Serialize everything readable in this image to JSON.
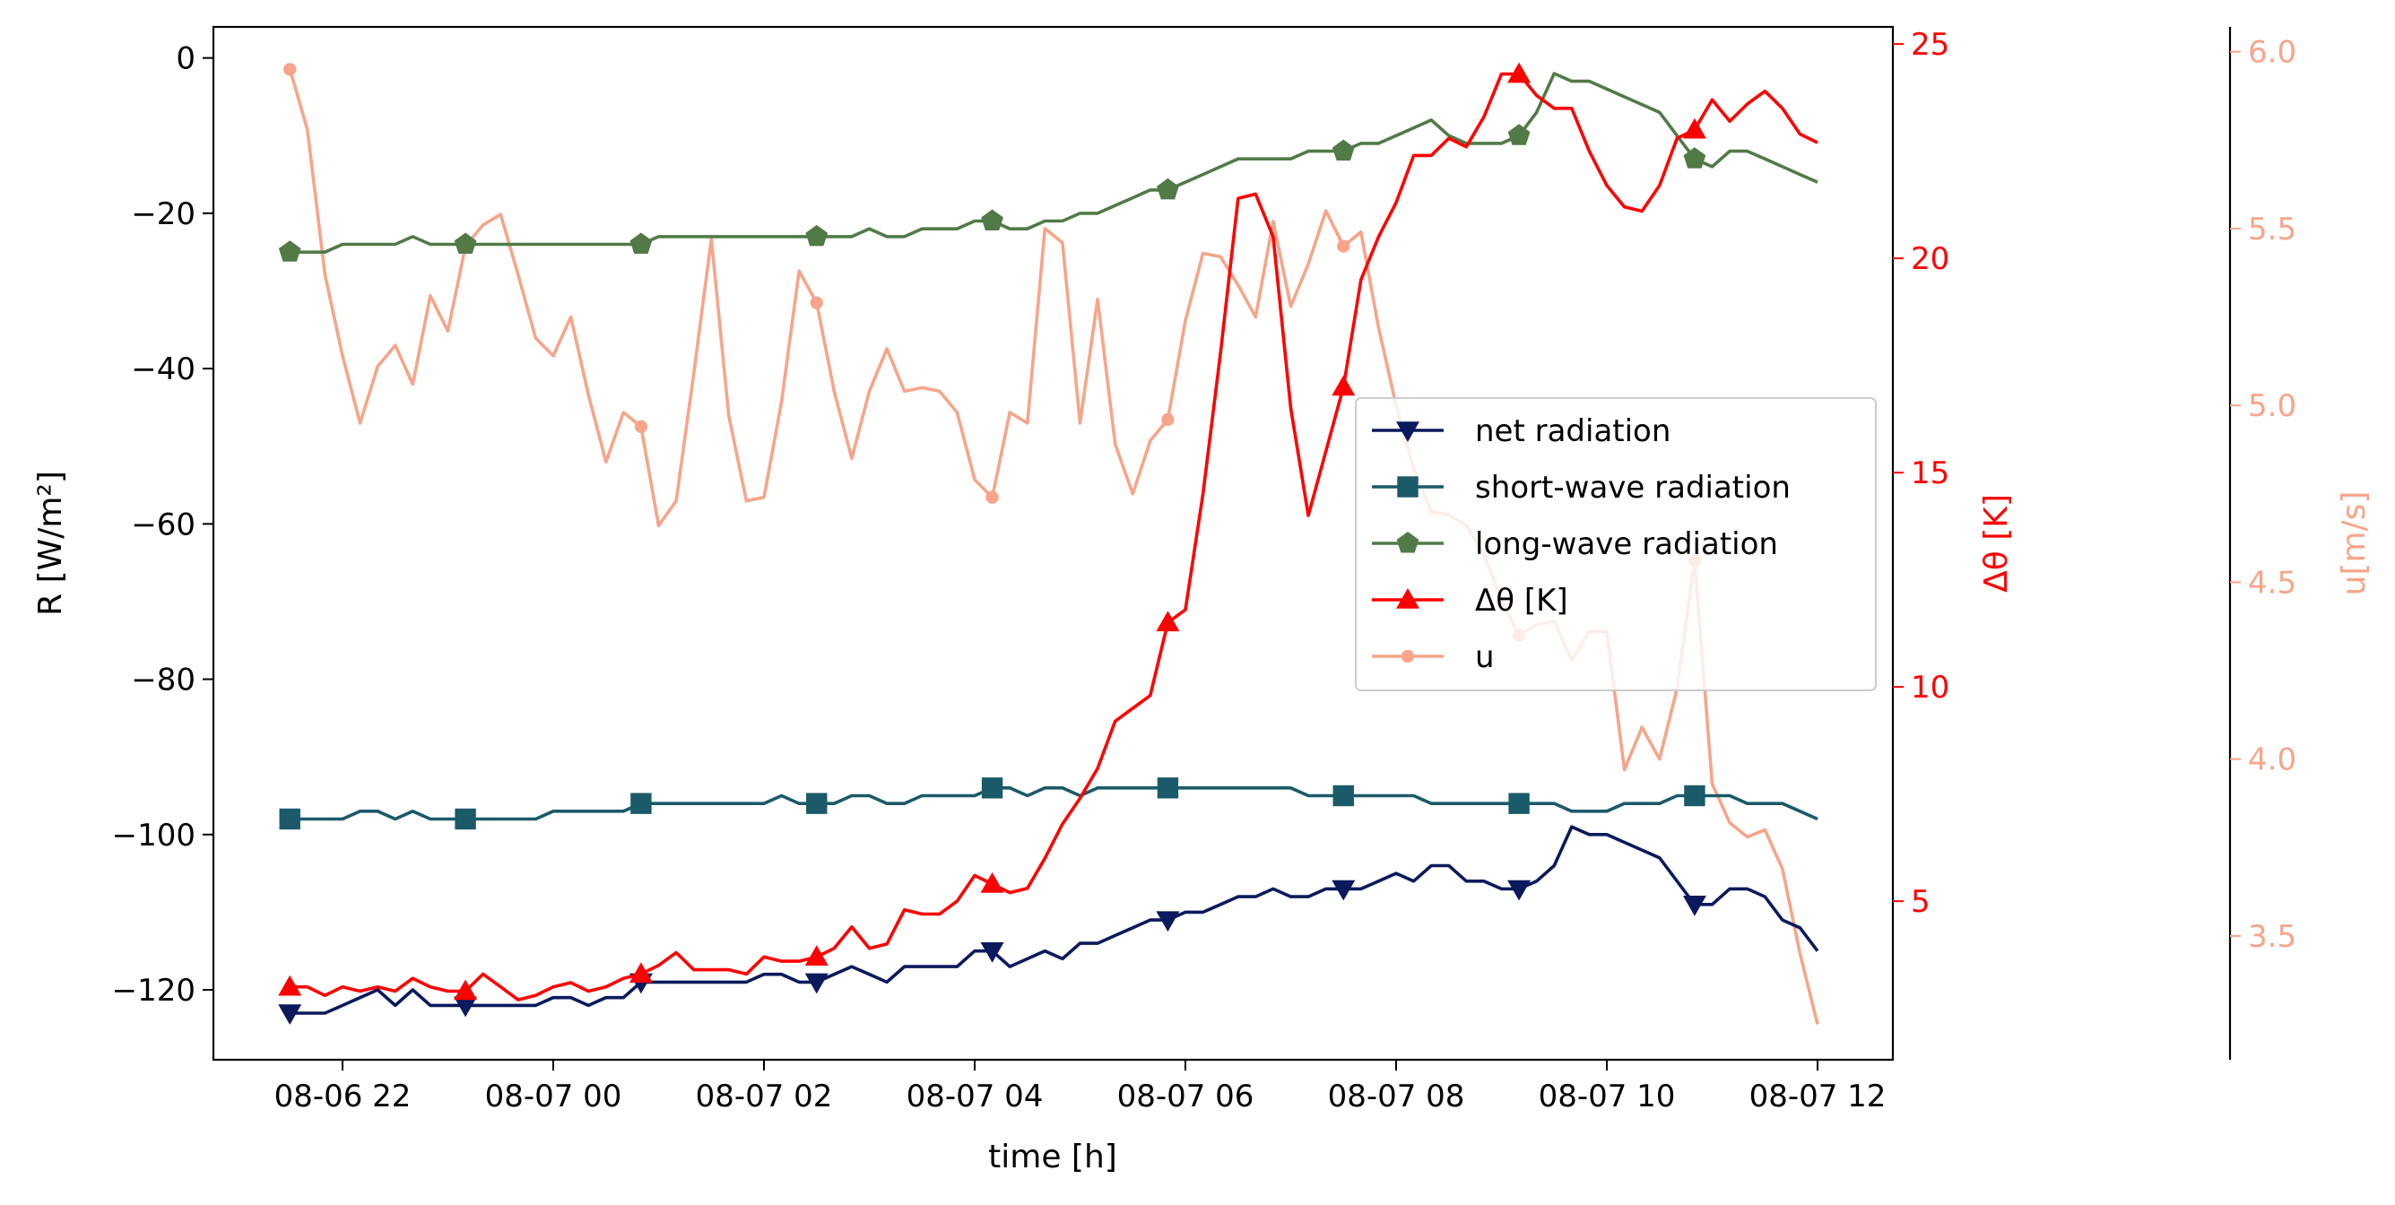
{
  "chart_data": {
    "type": "line",
    "xlabel": "time [h]",
    "x_ticks": [
      "08-06 22",
      "08-07 00",
      "08-07 02",
      "08-07 04",
      "08-07 06",
      "08-07 08",
      "08-07 10",
      "08-07 12"
    ],
    "x": [
      "21:30",
      "21:40",
      "21:50",
      "22:00",
      "22:10",
      "22:20",
      "22:30",
      "22:40",
      "22:50",
      "23:00",
      "23:10",
      "23:20",
      "23:30",
      "23:40",
      "23:50",
      "00:00",
      "00:10",
      "00:20",
      "00:30",
      "00:40",
      "00:50",
      "01:00",
      "01:10",
      "01:20",
      "01:30",
      "01:40",
      "01:50",
      "02:00",
      "02:10",
      "02:20",
      "02:30",
      "02:40",
      "02:50",
      "03:00",
      "03:10",
      "03:20",
      "03:30",
      "03:40",
      "03:50",
      "04:00",
      "04:10",
      "04:20",
      "04:30",
      "04:40",
      "04:50",
      "05:00",
      "05:10",
      "05:20",
      "05:30",
      "05:40",
      "05:50",
      "06:00",
      "06:10",
      "06:20",
      "06:30",
      "06:40",
      "06:50",
      "07:00",
      "07:10",
      "07:20",
      "07:30",
      "07:40",
      "07:50",
      "08:00",
      "08:10",
      "08:20",
      "08:30",
      "08:40",
      "08:50",
      "09:00",
      "09:10",
      "09:20",
      "09:30",
      "09:40",
      "09:50",
      "10:00",
      "10:10",
      "10:20",
      "10:30",
      "10:40",
      "10:50",
      "11:00",
      "11:10",
      "11:20",
      "11:30",
      "11:40",
      "11:50",
      "12:00"
    ],
    "axes": {
      "left": {
        "label": "R [W/m²]",
        "ylim": [
          -129,
          4
        ],
        "ticks": [
          0,
          -20,
          -40,
          -60,
          -80,
          -100,
          -120
        ],
        "tick_labels": [
          "0",
          "−20",
          "−40",
          "−60",
          "−80",
          "−100",
          "−120"
        ]
      },
      "right1": {
        "label": "Δθ [K]",
        "color": "#ff0000",
        "ylim": [
          1.3,
          25.4
        ],
        "ticks": [
          5,
          10,
          15,
          20,
          25
        ],
        "tick_labels": [
          "5",
          "10",
          "15",
          "20",
          "25"
        ]
      },
      "right2": {
        "label": "u[m/s]",
        "color": "#f6a58a",
        "ylim": [
          3.15,
          6.07
        ],
        "ticks": [
          3.5,
          4.0,
          4.5,
          5.0,
          5.5,
          6.0
        ],
        "tick_labels": [
          "3.5",
          "4.0",
          "4.5",
          "5.0",
          "5.5",
          "6.0"
        ]
      }
    },
    "series": [
      {
        "name": "net radiation",
        "axis": "left",
        "color": "#0a1a5c",
        "marker": "triangle-down",
        "markevery": 10,
        "values": [
          -123,
          -123,
          -123,
          -122,
          -121,
          -120,
          -122,
          -120,
          -122,
          -122,
          -122,
          -122,
          -122,
          -122,
          -122,
          -121,
          -121,
          -122,
          -121,
          -121,
          -119,
          -119,
          -119,
          -119,
          -119,
          -119,
          -119,
          -118,
          -118,
          -119,
          -119,
          -118,
          -117,
          -118,
          -119,
          -117,
          -117,
          -117,
          -117,
          -115,
          -115,
          -117,
          -116,
          -115,
          -116,
          -114,
          -114,
          -113,
          -112,
          -111,
          -111,
          -110,
          -110,
          -109,
          -108,
          -108,
          -107,
          -108,
          -108,
          -107,
          -107,
          -107,
          -106,
          -105,
          -106,
          -104,
          -104,
          -106,
          -106,
          -107,
          -107,
          -106,
          -104,
          -99,
          -100,
          -100,
          -101,
          -102,
          -103,
          -106,
          -109,
          -109,
          -107,
          -107,
          -108,
          -111,
          -112,
          -115
        ]
      },
      {
        "name": "short-wave radiation",
        "axis": "left",
        "color": "#1b5a68",
        "marker": "square",
        "markevery": 10,
        "values": [
          -98,
          -98,
          -98,
          -98,
          -97,
          -97,
          -98,
          -97,
          -98,
          -98,
          -98,
          -98,
          -98,
          -98,
          -98,
          -97,
          -97,
          -97,
          -97,
          -97,
          -96,
          -96,
          -96,
          -96,
          -96,
          -96,
          -96,
          -96,
          -95,
          -96,
          -96,
          -96,
          -95,
          -95,
          -96,
          -96,
          -95,
          -95,
          -95,
          -95,
          -94,
          -94,
          -95,
          -94,
          -94,
          -95,
          -94,
          -94,
          -94,
          -94,
          -94,
          -94,
          -94,
          -94,
          -94,
          -94,
          -94,
          -94,
          -95,
          -95,
          -95,
          -95,
          -95,
          -95,
          -95,
          -96,
          -96,
          -96,
          -96,
          -96,
          -96,
          -96,
          -96,
          -97,
          -97,
          -97,
          -96,
          -96,
          -96,
          -95,
          -95,
          -95,
          -95,
          -96,
          -96,
          -96,
          -97,
          -98
        ]
      },
      {
        "name": "long-wave radiation",
        "axis": "left",
        "color": "#517a47",
        "marker": "pentagon",
        "markevery": 10,
        "values": [
          -25,
          -25,
          -25,
          -24,
          -24,
          -24,
          -24,
          -23,
          -24,
          -24,
          -24,
          -24,
          -24,
          -24,
          -24,
          -24,
          -24,
          -24,
          -24,
          -24,
          -24,
          -23,
          -23,
          -23,
          -23,
          -23,
          -23,
          -23,
          -23,
          -23,
          -23,
          -23,
          -23,
          -22,
          -23,
          -23,
          -22,
          -22,
          -22,
          -21,
          -21,
          -22,
          -22,
          -21,
          -21,
          -20,
          -20,
          -19,
          -18,
          -17,
          -17,
          -16,
          -15,
          -14,
          -13,
          -13,
          -13,
          -13,
          -12,
          -12,
          -12,
          -11,
          -11,
          -10,
          -9,
          -8,
          -10,
          -11,
          -11,
          -11,
          -10,
          -7,
          -2,
          -3,
          -3,
          -4,
          -5,
          -6,
          -7,
          -10,
          -13,
          -14,
          -12,
          -12,
          -13,
          -14,
          -15,
          -16
        ]
      },
      {
        "name": "Δθ [K]",
        "axis": "right1",
        "color": "#ff0000",
        "marker": "triangle-up",
        "markevery": 10,
        "values": [
          3.0,
          3.0,
          2.8,
          3.0,
          2.9,
          3.0,
          2.9,
          3.2,
          3.0,
          2.9,
          2.9,
          3.3,
          3.0,
          2.7,
          2.8,
          3.0,
          3.1,
          2.9,
          3.0,
          3.2,
          3.3,
          3.5,
          3.8,
          3.4,
          3.4,
          3.4,
          3.3,
          3.7,
          3.6,
          3.6,
          3.7,
          3.9,
          4.4,
          3.9,
          4.0,
          4.8,
          4.7,
          4.7,
          5.0,
          5.6,
          5.4,
          5.2,
          5.3,
          6.0,
          6.8,
          7.4,
          8.1,
          9.2,
          9.5,
          9.8,
          11.5,
          11.8,
          14.5,
          17.8,
          21.4,
          21.5,
          20.5,
          16.5,
          14.0,
          15.5,
          17.0,
          19.5,
          20.5,
          21.3,
          22.4,
          22.4,
          22.8,
          22.6,
          23.3,
          24.3,
          24.3,
          23.8,
          23.5,
          23.5,
          22.5,
          21.7,
          21.2,
          21.1,
          21.7,
          22.8,
          23.0,
          23.7,
          23.2,
          23.6,
          23.9,
          23.5,
          22.9,
          22.7
        ]
      },
      {
        "name": "u",
        "axis": "right2",
        "color": "#f6a58a",
        "marker": "circle",
        "markevery": 10,
        "values": [
          5.95,
          5.78,
          5.37,
          5.14,
          4.95,
          5.11,
          5.17,
          5.06,
          5.31,
          5.21,
          5.45,
          5.51,
          5.54,
          5.37,
          5.19,
          5.14,
          5.25,
          5.03,
          4.84,
          4.98,
          4.94,
          4.66,
          4.73,
          5.09,
          5.47,
          4.97,
          4.73,
          4.74,
          5.01,
          5.38,
          5.29,
          5.04,
          4.85,
          5.04,
          5.16,
          5.04,
          5.05,
          5.04,
          4.98,
          4.79,
          4.74,
          4.98,
          4.95,
          5.5,
          5.46,
          4.95,
          5.3,
          4.89,
          4.75,
          4.9,
          4.96,
          5.24,
          5.43,
          5.42,
          5.34,
          5.25,
          5.52,
          5.28,
          5.4,
          5.55,
          5.45,
          5.49,
          5.22,
          5.0,
          4.82,
          4.7,
          4.69,
          4.66,
          4.58,
          4.45,
          4.35,
          4.38,
          4.39,
          4.28,
          4.36,
          4.36,
          3.97,
          4.09,
          4.0,
          4.2,
          4.56,
          3.93,
          3.82,
          3.78,
          3.8,
          3.69,
          3.45,
          3.25
        ]
      }
    ],
    "legend": {
      "position": "right-center",
      "entries": [
        "net radiation",
        "short-wave radiation",
        "long-wave radiation",
        "Δθ [K]",
        "u"
      ]
    }
  }
}
